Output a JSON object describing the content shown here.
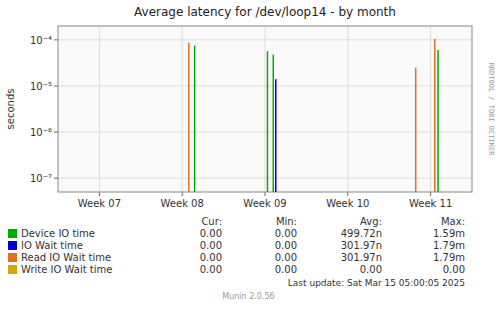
{
  "chart_data": {
    "type": "stem",
    "title": "Average latency for /dev/loop14 - by month",
    "y_label": "seconds",
    "log": "y",
    "grid": true,
    "xlim": [
      -0.5,
      4.5
    ],
    "xticks": [
      {
        "value": 0,
        "label": "Week 07"
      },
      {
        "value": 1,
        "label": "Week 08"
      },
      {
        "value": 2,
        "label": "Week 09"
      },
      {
        "value": 3,
        "label": "Week 10"
      },
      {
        "value": 4,
        "label": "Week 11"
      }
    ],
    "ylim": [
      5e-08,
      0.0002
    ],
    "yticks": [
      {
        "value": 1e-07,
        "label": "10⁻⁷"
      },
      {
        "value": 1e-06,
        "label": "10⁻⁶"
      },
      {
        "value": 1e-05,
        "label": "10⁻⁵"
      },
      {
        "value": 0.0001,
        "label": "10⁻⁴"
      }
    ],
    "stat_headers": [
      "Cur:",
      "Min:",
      "Avg:",
      "Max:"
    ],
    "series": [
      {
        "name": "Device IO time",
        "color": "#00aa00",
        "x": [
          1.15,
          2.03,
          2.1,
          4.09
        ],
        "values": [
          7.5e-05,
          5.7e-05,
          4.8e-05,
          6e-05
        ],
        "stats": [
          "0.00",
          "0.00",
          "499.72n",
          "1.59m"
        ]
      },
      {
        "name": "IO Wait time",
        "color": "#0000cc",
        "x": [
          2.13
        ],
        "values": [
          1.4e-05
        ],
        "stats": [
          "0.00",
          "0.00",
          "301.97n",
          "1.79m"
        ]
      },
      {
        "name": "Read IO Wait time",
        "color": "#e07020",
        "x": [
          1.08,
          3.82,
          4.05
        ],
        "values": [
          8.8e-05,
          2.5e-05,
          0.000105
        ],
        "stats": [
          "0.00",
          "0.00",
          "301.97n",
          "1.79m"
        ]
      },
      {
        "name": "Write IO Wait time",
        "color": "#ccaa00",
        "x": [],
        "values": [],
        "stats": [
          "0.00",
          "0.00",
          "0.00",
          "0.00"
        ]
      }
    ],
    "footer": "Last update: Sat Mar 15 05:00:05 2025",
    "munin_version": "Munin 2.0.56",
    "side_label": "RRDTOOL / TOBI OETIKER"
  }
}
